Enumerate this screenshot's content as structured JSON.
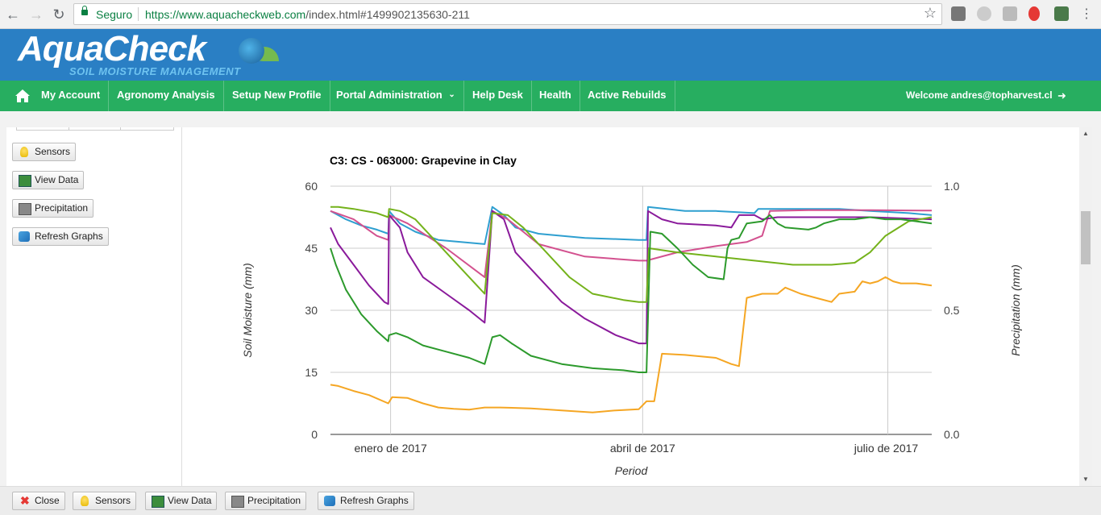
{
  "browser": {
    "secure_label": "Seguro",
    "url_host": "https://www.aquacheckweb.com",
    "url_path": "/index.html#1499902135630-211"
  },
  "header": {
    "logo_text": "AquaCheck",
    "logo_subtitle": "SOIL MOISTURE MANAGEMENT"
  },
  "menu": {
    "items": [
      {
        "label": "My Account"
      },
      {
        "label": "Agronomy Analysis"
      },
      {
        "label": "Setup New Profile"
      },
      {
        "label": "Portal Administration"
      },
      {
        "label": "Help Desk"
      },
      {
        "label": "Health"
      },
      {
        "label": "Active Rebuilds"
      }
    ],
    "welcome": "Welcome andres@topharvest.cl"
  },
  "sidebar": {
    "sensors": "Sensors",
    "view_data": "View Data",
    "precipitation": "Precipitation",
    "refresh": "Refresh Graphs"
  },
  "bottom": {
    "close": "Close",
    "sensors": "Sensors",
    "view_data": "View Data",
    "precipitation": "Precipitation",
    "refresh": "Refresh Graphs"
  },
  "chart_data": {
    "type": "line",
    "title": "C3: CS - 063000: Grapevine in Clay",
    "xlabel": "Period",
    "ylabel": "Soil Moisture (mm)",
    "y2label": "Precipitation (mm)",
    "ylim": [
      0,
      60
    ],
    "y2lim": [
      0,
      1.0
    ],
    "yticks": [
      "0",
      "15",
      "30",
      "45",
      "60"
    ],
    "y2ticks": [
      "0.0",
      "0.5",
      "1.0"
    ],
    "xticks": [
      "enero de 2017",
      "abril de 2017",
      "julio de 2017"
    ],
    "grid": true,
    "colors": [
      "#2e9fd0",
      "#d3518f",
      "#8a1a9b",
      "#74b21b",
      "#2c9a2c",
      "#f5a623"
    ],
    "series": [
      {
        "color": "#2e9fd0",
        "points": [
          [
            0,
            54
          ],
          [
            2,
            52
          ],
          [
            4,
            50.5
          ],
          [
            6,
            49.5
          ],
          [
            7.5,
            48.5
          ],
          [
            7.6,
            54
          ],
          [
            9,
            51
          ],
          [
            11,
            49
          ],
          [
            14,
            47
          ],
          [
            20,
            46
          ],
          [
            21,
            55
          ],
          [
            22.5,
            53
          ],
          [
            24,
            50
          ],
          [
            27,
            48.5
          ],
          [
            33,
            47.5
          ],
          [
            40,
            47
          ],
          [
            41,
            47
          ],
          [
            41.2,
            55
          ],
          [
            46,
            54
          ],
          [
            50,
            54
          ],
          [
            55,
            53.5
          ],
          [
            55.5,
            54.5
          ],
          [
            58,
            54.5
          ],
          [
            62,
            54.5
          ],
          [
            66,
            54.5
          ],
          [
            70,
            54
          ],
          [
            75,
            53.5
          ],
          [
            78,
            53
          ]
        ]
      },
      {
        "color": "#d3518f",
        "points": [
          [
            0,
            54
          ],
          [
            3,
            52
          ],
          [
            6,
            48
          ],
          [
            7.5,
            47
          ],
          [
            7.6,
            53
          ],
          [
            10,
            51
          ],
          [
            15,
            45
          ],
          [
            20,
            38
          ],
          [
            21,
            54
          ],
          [
            23,
            52
          ],
          [
            27,
            46
          ],
          [
            33,
            43
          ],
          [
            40,
            42
          ],
          [
            41,
            42
          ],
          [
            45,
            44
          ],
          [
            50,
            45.5
          ],
          [
            54,
            46.5
          ],
          [
            56,
            48
          ],
          [
            57,
            54
          ],
          [
            62,
            54.2
          ],
          [
            70,
            54.2
          ],
          [
            78,
            54.1
          ]
        ]
      },
      {
        "color": "#8a1a9b",
        "points": [
          [
            0,
            50
          ],
          [
            1,
            46
          ],
          [
            3,
            41
          ],
          [
            5,
            36
          ],
          [
            7,
            32
          ],
          [
            7.5,
            31.5
          ],
          [
            7.6,
            53
          ],
          [
            9,
            50
          ],
          [
            10,
            44
          ],
          [
            12,
            38
          ],
          [
            15,
            34
          ],
          [
            18,
            30
          ],
          [
            20,
            27
          ],
          [
            21,
            54
          ],
          [
            22.5,
            52
          ],
          [
            24,
            44
          ],
          [
            27,
            38
          ],
          [
            30,
            32
          ],
          [
            33,
            28
          ],
          [
            37,
            24
          ],
          [
            40,
            22
          ],
          [
            41,
            22
          ],
          [
            41.2,
            54
          ],
          [
            43,
            52
          ],
          [
            45,
            51
          ],
          [
            50,
            50.5
          ],
          [
            52,
            50
          ],
          [
            53,
            53
          ],
          [
            55,
            53
          ],
          [
            56,
            52
          ],
          [
            58,
            52.5
          ],
          [
            65,
            52.5
          ],
          [
            70,
            52.5
          ],
          [
            78,
            52
          ]
        ]
      },
      {
        "color": "#74b21b",
        "points": [
          [
            0,
            55
          ],
          [
            1,
            55
          ],
          [
            3,
            54.5
          ],
          [
            6,
            53.5
          ],
          [
            7.5,
            52.5
          ],
          [
            7.6,
            54.5
          ],
          [
            9,
            54
          ],
          [
            11,
            52
          ],
          [
            13,
            48
          ],
          [
            16,
            42
          ],
          [
            19,
            36
          ],
          [
            20,
            34
          ],
          [
            21,
            53.5
          ],
          [
            23,
            53
          ],
          [
            25,
            50
          ],
          [
            28,
            44
          ],
          [
            31,
            38
          ],
          [
            34,
            34
          ],
          [
            38,
            32.5
          ],
          [
            40,
            32
          ],
          [
            41,
            32
          ],
          [
            41.3,
            45
          ],
          [
            45,
            44
          ],
          [
            50,
            43
          ],
          [
            55,
            42
          ],
          [
            60,
            41
          ],
          [
            65,
            41
          ],
          [
            68,
            41.5
          ],
          [
            70,
            44
          ],
          [
            72,
            48
          ],
          [
            75,
            51.5
          ],
          [
            78,
            52.5
          ]
        ]
      },
      {
        "color": "#2c9a2c",
        "points": [
          [
            0,
            45
          ],
          [
            0.7,
            41
          ],
          [
            2,
            35
          ],
          [
            4,
            29
          ],
          [
            6,
            25
          ],
          [
            7.5,
            22.5
          ],
          [
            7.6,
            24
          ],
          [
            8.5,
            24.5
          ],
          [
            10,
            23.5
          ],
          [
            12,
            21.5
          ],
          [
            15,
            20
          ],
          [
            18,
            18.5
          ],
          [
            20,
            17
          ],
          [
            21,
            23.5
          ],
          [
            22,
            24
          ],
          [
            23.5,
            22
          ],
          [
            26,
            19
          ],
          [
            30,
            17
          ],
          [
            34,
            16
          ],
          [
            38,
            15.5
          ],
          [
            40,
            15
          ],
          [
            41,
            15
          ],
          [
            41.5,
            49
          ],
          [
            43,
            48.5
          ],
          [
            45,
            45
          ],
          [
            47,
            41
          ],
          [
            49,
            38
          ],
          [
            51,
            37.5
          ],
          [
            51.5,
            45
          ],
          [
            52,
            47
          ],
          [
            53,
            47.5
          ],
          [
            54,
            51
          ],
          [
            56,
            51.5
          ],
          [
            57,
            53
          ],
          [
            58,
            51
          ],
          [
            59,
            50
          ],
          [
            62,
            49.5
          ],
          [
            63,
            50
          ],
          [
            64,
            51
          ],
          [
            66,
            52
          ],
          [
            68,
            52
          ],
          [
            70,
            52.5
          ],
          [
            72,
            52
          ],
          [
            74,
            52
          ],
          [
            76,
            51.5
          ],
          [
            78,
            51
          ]
        ]
      },
      {
        "color": "#f5a623",
        "points": [
          [
            0,
            12
          ],
          [
            1,
            11.7
          ],
          [
            3,
            10.5
          ],
          [
            5,
            9.5
          ],
          [
            7.5,
            7.5
          ],
          [
            8,
            9
          ],
          [
            10,
            8.8
          ],
          [
            12,
            7.5
          ],
          [
            14,
            6.5
          ],
          [
            16,
            6.2
          ],
          [
            18,
            6
          ],
          [
            20,
            6.5
          ],
          [
            22,
            6.5
          ],
          [
            26,
            6.3
          ],
          [
            30,
            5.8
          ],
          [
            34,
            5.3
          ],
          [
            37,
            5.8
          ],
          [
            40,
            6.1
          ],
          [
            41,
            8
          ],
          [
            42,
            8
          ],
          [
            43,
            19.5
          ],
          [
            46,
            19.2
          ],
          [
            50,
            18.5
          ],
          [
            52,
            17
          ],
          [
            53,
            16.5
          ],
          [
            54,
            33
          ],
          [
            56,
            34
          ],
          [
            58,
            34
          ],
          [
            59,
            35.5
          ],
          [
            61,
            34
          ],
          [
            63,
            33
          ],
          [
            65,
            32
          ],
          [
            66,
            34
          ],
          [
            68,
            34.5
          ],
          [
            69,
            37
          ],
          [
            70,
            36.5
          ],
          [
            71,
            37
          ],
          [
            72,
            38
          ],
          [
            73,
            37
          ],
          [
            74,
            36.5
          ],
          [
            76,
            36.5
          ],
          [
            78,
            36
          ]
        ]
      }
    ]
  }
}
